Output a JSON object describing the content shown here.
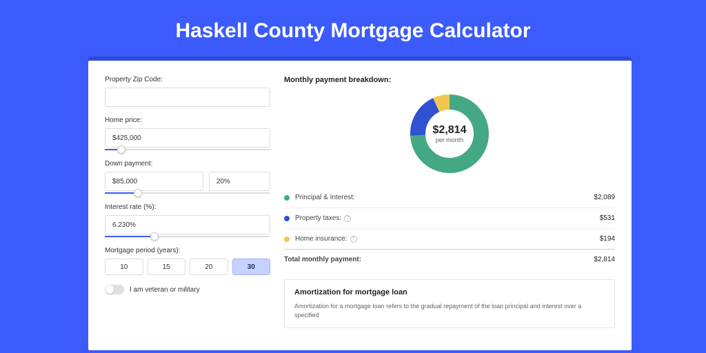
{
  "page": {
    "title": "Haskell County Mortgage Calculator",
    "background_color": "#3b5bfd",
    "card_shadow_color": "#2e4ad4"
  },
  "form": {
    "zip": {
      "label": "Property Zip Code:",
      "value": ""
    },
    "home_price": {
      "label": "Home price:",
      "value": "$425,000",
      "slider_percent": 10
    },
    "down_payment": {
      "label": "Down payment:",
      "amount": "$85,000",
      "percent": "20%",
      "slider_percent": 20
    },
    "interest_rate": {
      "label": "Interest rate (%):",
      "value": "6.230%",
      "slider_percent": 30
    },
    "mortgage_period": {
      "label": "Mortgage period (years):",
      "options": [
        "10",
        "15",
        "20",
        "30"
      ],
      "selected": "30"
    },
    "veteran": {
      "label": "I am veteran or military",
      "value": false
    }
  },
  "breakdown": {
    "title": "Monthly payment breakdown:",
    "donut": {
      "amount": "$2,814",
      "sub": "per month",
      "slices": [
        {
          "label": "Principal & Interest",
          "percent": 74.2,
          "color": "#45a884"
        },
        {
          "label": "Property taxes",
          "percent": 18.9,
          "color": "#3151d3"
        },
        {
          "label": "Home insurance",
          "percent": 6.9,
          "color": "#f3c64f"
        }
      ],
      "stroke_width": 22,
      "radius": 46
    },
    "items": [
      {
        "label": "Principal & Interest:",
        "value": "$2,089",
        "color": "#45a884",
        "help": false
      },
      {
        "label": "Property taxes:",
        "value": "$531",
        "color": "#3151d3",
        "help": true
      },
      {
        "label": "Home insurance:",
        "value": "$194",
        "color": "#f3c64f",
        "help": true
      }
    ],
    "total": {
      "label": "Total monthly payment:",
      "value": "$2,814"
    }
  },
  "amortization": {
    "title": "Amortization for mortgage loan",
    "text": "Amortization for a mortgage loan refers to the gradual repayment of the loan principal and interest over a specified"
  }
}
